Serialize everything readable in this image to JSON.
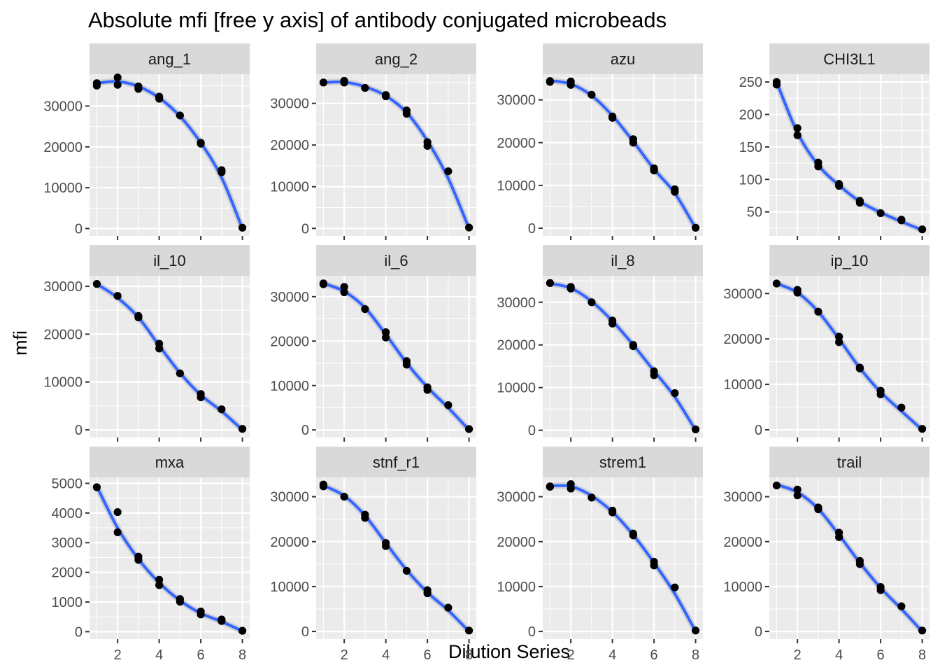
{
  "chart_data": {
    "type": "scatter",
    "title": "Absolute mfi [free y axis] of antibody conjugated microbeads",
    "xlabel": "Dilution Series",
    "ylabel": "mfi",
    "x_ticks": [
      2,
      4,
      6,
      8
    ],
    "xlim": [
      0.65,
      8.35
    ],
    "colors": {
      "smooth": "#3366FF",
      "point": "#000000",
      "panel_bg": "#EBEBEB",
      "strip_bg": "#D9D9D9",
      "grid": "#FFFFFF",
      "axis_text": "#4D4D4D"
    },
    "panels": [
      {
        "name": "ang_1",
        "ylim": [
          -1800,
          37800
        ],
        "yticks": [
          0,
          10000,
          20000,
          30000
        ],
        "points": [
          [
            1,
            35000
          ],
          [
            1,
            35600
          ],
          [
            2,
            35200
          ],
          [
            2,
            37000
          ],
          [
            3,
            34200
          ],
          [
            3,
            34800
          ],
          [
            4,
            31800
          ],
          [
            4,
            32300
          ],
          [
            5,
            27700
          ],
          [
            6,
            20800
          ],
          [
            6,
            21000
          ],
          [
            7,
            13800
          ],
          [
            7,
            14300
          ],
          [
            8,
            200
          ]
        ],
        "fit": [
          [
            1,
            35600
          ],
          [
            2,
            36000
          ],
          [
            3,
            34800
          ],
          [
            4,
            32000
          ],
          [
            5,
            27500
          ],
          [
            6,
            21000
          ],
          [
            7,
            12500
          ],
          [
            8,
            0
          ]
        ]
      },
      {
        "name": "ang_2",
        "ylim": [
          -1800,
          37000
        ],
        "yticks": [
          0,
          10000,
          20000,
          30000
        ],
        "points": [
          [
            1,
            35000
          ],
          [
            2,
            35000
          ],
          [
            2,
            35400
          ],
          [
            3,
            33700
          ],
          [
            4,
            31700
          ],
          [
            4,
            32000
          ],
          [
            5,
            27500
          ],
          [
            5,
            28300
          ],
          [
            6,
            19800
          ],
          [
            6,
            20700
          ],
          [
            7,
            13700
          ],
          [
            8,
            200
          ]
        ],
        "fit": [
          [
            1,
            35000
          ],
          [
            2,
            35100
          ],
          [
            3,
            34000
          ],
          [
            4,
            31800
          ],
          [
            5,
            27800
          ],
          [
            6,
            21000
          ],
          [
            7,
            12000
          ],
          [
            8,
            0
          ]
        ]
      },
      {
        "name": "azu",
        "ylim": [
          -1800,
          36000
        ],
        "yticks": [
          0,
          10000,
          20000,
          30000
        ],
        "points": [
          [
            1,
            34200
          ],
          [
            1,
            34400
          ],
          [
            2,
            33500
          ],
          [
            2,
            34300
          ],
          [
            3,
            31200
          ],
          [
            4,
            25800
          ],
          [
            4,
            26100
          ],
          [
            5,
            20000
          ],
          [
            5,
            20800
          ],
          [
            6,
            13500
          ],
          [
            6,
            14000
          ],
          [
            7,
            8500
          ],
          [
            7,
            9100
          ],
          [
            8,
            100
          ]
        ],
        "fit": [
          [
            1,
            34500
          ],
          [
            2,
            33700
          ],
          [
            3,
            31000
          ],
          [
            4,
            26300
          ],
          [
            5,
            20300
          ],
          [
            6,
            13800
          ],
          [
            7,
            8200
          ],
          [
            8,
            0
          ]
        ]
      },
      {
        "name": "CHI3L1",
        "ylim": [
          13,
          262
        ],
        "yticks": [
          50,
          100,
          150,
          200,
          250
        ],
        "points": [
          [
            1,
            246
          ],
          [
            1,
            250
          ],
          [
            2,
            168
          ],
          [
            2,
            179
          ],
          [
            3,
            120
          ],
          [
            3,
            126
          ],
          [
            4,
            93
          ],
          [
            4,
            90
          ],
          [
            5,
            64
          ],
          [
            5,
            67
          ],
          [
            6,
            48
          ],
          [
            7,
            37
          ],
          [
            7,
            38
          ],
          [
            8,
            23
          ]
        ],
        "fit": [
          [
            1,
            250
          ],
          [
            2,
            172
          ],
          [
            3,
            122
          ],
          [
            4,
            91
          ],
          [
            5,
            66
          ],
          [
            6,
            49
          ],
          [
            7,
            35
          ],
          [
            8,
            22
          ]
        ]
      },
      {
        "name": "il_10",
        "ylim": [
          -1600,
          32200
        ],
        "yticks": [
          0,
          10000,
          20000,
          30000
        ],
        "points": [
          [
            1,
            30500
          ],
          [
            2,
            28000
          ],
          [
            3,
            23500
          ],
          [
            3,
            23800
          ],
          [
            4,
            17000
          ],
          [
            4,
            18000
          ],
          [
            5,
            11800
          ],
          [
            6,
            6800
          ],
          [
            6,
            7500
          ],
          [
            7,
            4300
          ],
          [
            8,
            200
          ]
        ],
        "fit": [
          [
            1,
            30500
          ],
          [
            2,
            27600
          ],
          [
            3,
            23500
          ],
          [
            4,
            17600
          ],
          [
            5,
            11900
          ],
          [
            6,
            7300
          ],
          [
            7,
            3900
          ],
          [
            8,
            0
          ]
        ]
      },
      {
        "name": "il_6",
        "ylim": [
          -1700,
          34700
        ],
        "yticks": [
          0,
          10000,
          20000,
          30000
        ],
        "points": [
          [
            1,
            32800
          ],
          [
            1,
            33000
          ],
          [
            2,
            31000
          ],
          [
            2,
            32200
          ],
          [
            3,
            27200
          ],
          [
            4,
            20800
          ],
          [
            4,
            22000
          ],
          [
            5,
            14700
          ],
          [
            5,
            15500
          ],
          [
            6,
            9000
          ],
          [
            6,
            9600
          ],
          [
            7,
            5600
          ],
          [
            8,
            200
          ]
        ],
        "fit": [
          [
            1,
            33000
          ],
          [
            2,
            31200
          ],
          [
            3,
            27500
          ],
          [
            4,
            21500
          ],
          [
            5,
            15100
          ],
          [
            6,
            9600
          ],
          [
            7,
            5000
          ],
          [
            8,
            0
          ]
        ]
      },
      {
        "name": "il_8",
        "ylim": [
          -1700,
          36200
        ],
        "yticks": [
          0,
          10000,
          20000,
          30000
        ],
        "points": [
          [
            1,
            34500
          ],
          [
            2,
            33200
          ],
          [
            2,
            33600
          ],
          [
            3,
            30000
          ],
          [
            4,
            25000
          ],
          [
            4,
            25700
          ],
          [
            5,
            19700
          ],
          [
            5,
            20000
          ],
          [
            6,
            12900
          ],
          [
            6,
            13800
          ],
          [
            7,
            8700
          ],
          [
            8,
            200
          ]
        ],
        "fit": [
          [
            1,
            34400
          ],
          [
            2,
            33300
          ],
          [
            3,
            30200
          ],
          [
            4,
            25600
          ],
          [
            5,
            20000
          ],
          [
            6,
            13900
          ],
          [
            7,
            7800
          ],
          [
            8,
            0
          ]
        ]
      },
      {
        "name": "ip_10",
        "ylim": [
          -1700,
          33900
        ],
        "yticks": [
          0,
          10000,
          20000,
          30000
        ],
        "points": [
          [
            1,
            32200
          ],
          [
            2,
            30200
          ],
          [
            2,
            30800
          ],
          [
            3,
            26000
          ],
          [
            4,
            19300
          ],
          [
            4,
            20500
          ],
          [
            5,
            13500
          ],
          [
            5,
            13700
          ],
          [
            6,
            7800
          ],
          [
            6,
            8600
          ],
          [
            7,
            4900
          ],
          [
            8,
            200
          ]
        ],
        "fit": [
          [
            1,
            32200
          ],
          [
            2,
            30200
          ],
          [
            3,
            26000
          ],
          [
            4,
            20000
          ],
          [
            5,
            13600
          ],
          [
            6,
            8300
          ],
          [
            7,
            4100
          ],
          [
            8,
            0
          ]
        ]
      },
      {
        "name": "mxa",
        "ylim": [
          -250,
          5200
        ],
        "yticks": [
          0,
          1000,
          2000,
          3000,
          4000,
          5000
        ],
        "points": [
          [
            1,
            4870
          ],
          [
            2,
            3350
          ],
          [
            2,
            4030
          ],
          [
            3,
            2420
          ],
          [
            3,
            2530
          ],
          [
            4,
            1570
          ],
          [
            4,
            1750
          ],
          [
            5,
            1010
          ],
          [
            5,
            1100
          ],
          [
            6,
            580
          ],
          [
            6,
            680
          ],
          [
            7,
            360
          ],
          [
            7,
            410
          ],
          [
            8,
            30
          ]
        ],
        "fit": [
          [
            1,
            4900
          ],
          [
            2,
            3500
          ],
          [
            3,
            2450
          ],
          [
            4,
            1650
          ],
          [
            5,
            1050
          ],
          [
            6,
            620
          ],
          [
            7,
            340
          ],
          [
            8,
            20
          ]
        ]
      },
      {
        "name": "stnf_r1",
        "ylim": [
          -1700,
          34300
        ],
        "yticks": [
          0,
          10000,
          20000,
          30000
        ],
        "points": [
          [
            1,
            32300
          ],
          [
            1,
            32700
          ],
          [
            2,
            30000
          ],
          [
            3,
            25300
          ],
          [
            3,
            26000
          ],
          [
            4,
            19000
          ],
          [
            4,
            19700
          ],
          [
            5,
            13500
          ],
          [
            6,
            8500
          ],
          [
            6,
            9200
          ],
          [
            7,
            5300
          ],
          [
            8,
            200
          ]
        ],
        "fit": [
          [
            1,
            32500
          ],
          [
            2,
            30200
          ],
          [
            3,
            25800
          ],
          [
            4,
            19700
          ],
          [
            5,
            13700
          ],
          [
            6,
            8700
          ],
          [
            7,
            4700
          ],
          [
            8,
            0
          ]
        ]
      },
      {
        "name": "strem1",
        "ylim": [
          -1700,
          34300
        ],
        "yticks": [
          0,
          10000,
          20000,
          30000
        ],
        "points": [
          [
            1,
            32200
          ],
          [
            1,
            32300
          ],
          [
            2,
            31800
          ],
          [
            2,
            32800
          ],
          [
            3,
            29800
          ],
          [
            4,
            26500
          ],
          [
            4,
            26900
          ],
          [
            5,
            21400
          ],
          [
            5,
            21800
          ],
          [
            6,
            14700
          ],
          [
            6,
            15500
          ],
          [
            7,
            9800
          ],
          [
            8,
            200
          ]
        ],
        "fit": [
          [
            1,
            32400
          ],
          [
            2,
            32300
          ],
          [
            3,
            30200
          ],
          [
            4,
            26600
          ],
          [
            5,
            21500
          ],
          [
            6,
            15300
          ],
          [
            7,
            8400
          ],
          [
            8,
            0
          ]
        ]
      },
      {
        "name": "trail",
        "ylim": [
          -1700,
          34300
        ],
        "yticks": [
          0,
          10000,
          20000,
          30000
        ],
        "points": [
          [
            1,
            32500
          ],
          [
            2,
            30300
          ],
          [
            2,
            31600
          ],
          [
            3,
            27200
          ],
          [
            3,
            27600
          ],
          [
            4,
            21000
          ],
          [
            4,
            22000
          ],
          [
            5,
            15000
          ],
          [
            5,
            15700
          ],
          [
            6,
            9200
          ],
          [
            6,
            9900
          ],
          [
            7,
            5600
          ],
          [
            8,
            200
          ]
        ],
        "fit": [
          [
            1,
            32700
          ],
          [
            2,
            31000
          ],
          [
            3,
            27300
          ],
          [
            4,
            21500
          ],
          [
            5,
            15300
          ],
          [
            6,
            9700
          ],
          [
            7,
            5000
          ],
          [
            8,
            0
          ]
        ]
      }
    ]
  }
}
